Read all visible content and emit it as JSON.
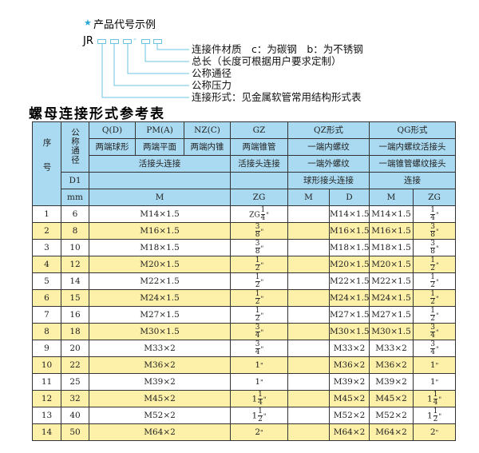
{
  "diagram": {
    "title": "产品代号示例",
    "code": "JR",
    "dash": "-",
    "labels": [
      "连接件材质　c：为碳钢　b：为不锈钢",
      "总长（长度可根据用户要求定制）",
      "公称通径",
      "公称压力",
      "连接形式：见金属软管常用结构形式表"
    ],
    "line_color": "#6cc3e0"
  },
  "table_title": "螺母连接形式参考表",
  "header": {
    "seq": "序号",
    "dn": "公称通径",
    "row1": [
      "Q(D)",
      "PM(A)",
      "NZ(C)",
      "GZ",
      "QZ形式",
      "QG形式"
    ],
    "row2": [
      "两端球形",
      "两端平面",
      "两端内锥",
      "两端锥管",
      "一端内螺纹",
      "一端内螺纹活接头"
    ],
    "row3": [
      "活接头连接",
      "活接头连接",
      "一端外螺纹",
      "一端锥管螺纹接头"
    ],
    "row4": [
      "D1",
      "",
      "",
      "球形接头连接",
      "连接"
    ],
    "row5": [
      "mm",
      "M",
      "ZG",
      "M",
      "D",
      "M",
      "ZG"
    ]
  },
  "rows": [
    {
      "seq": "1",
      "d1": "6",
      "m": "M14×1.5",
      "zg": {
        "pre": "ZG",
        "w": "",
        "n": "1",
        "d": "4"
      },
      "qzm": "",
      "qzd": "M14×1.5",
      "qgm": "M14×1.5",
      "qgzg": {
        "w": "",
        "n": "1",
        "d": "4"
      }
    },
    {
      "seq": "2",
      "d1": "8",
      "m": "M16×1.5",
      "zg": {
        "w": "",
        "n": "3",
        "d": "8"
      },
      "qzm": "",
      "qzd": "M16×1.5",
      "qgm": "M16×1.5",
      "qgzg": {
        "w": "",
        "n": "3",
        "d": "8"
      }
    },
    {
      "seq": "3",
      "d1": "10",
      "m": "M18×1.5",
      "zg": {
        "w": "",
        "n": "3",
        "d": "8"
      },
      "qzm": "",
      "qzd": "M18×1.5",
      "qgm": "M18×1.5",
      "qgzg": {
        "w": "",
        "n": "3",
        "d": "8"
      }
    },
    {
      "seq": "4",
      "d1": "12",
      "m": "M20×1.5",
      "zg": {
        "w": "",
        "n": "1",
        "d": "2"
      },
      "qzm": "",
      "qzd": "M20×1.5",
      "qgm": "M20×1.5",
      "qgzg": {
        "w": "",
        "n": "1",
        "d": "2"
      }
    },
    {
      "seq": "5",
      "d1": "14",
      "m": "M22×1.5",
      "zg": {
        "w": "",
        "n": "1",
        "d": "2"
      },
      "qzm": "",
      "qzd": "M22×1.5",
      "qgm": "M22×1.5",
      "qgzg": {
        "w": "",
        "n": "1",
        "d": "2"
      }
    },
    {
      "seq": "6",
      "d1": "15",
      "m": "M24×1.5",
      "zg": {
        "w": "",
        "n": "1",
        "d": "2"
      },
      "qzm": "",
      "qzd": "M24×1.5",
      "qgm": "M24×1.5",
      "qgzg": {
        "w": "",
        "n": "1",
        "d": "2"
      }
    },
    {
      "seq": "7",
      "d1": "16",
      "m": "M27×1.5",
      "zg": {
        "w": "",
        "n": "1",
        "d": "2"
      },
      "qzm": "",
      "qzd": "M27×1.5",
      "qgm": "M27×1.5",
      "qgzg": {
        "w": "",
        "n": "1",
        "d": "2"
      }
    },
    {
      "seq": "8",
      "d1": "18",
      "m": "M30×1.5",
      "zg": {
        "w": "",
        "n": "3",
        "d": "4"
      },
      "qzm": "",
      "qzd": "M30×1.5",
      "qgm": "M30×1.5",
      "qgzg": {
        "w": "",
        "n": "3",
        "d": "4"
      }
    },
    {
      "seq": "9",
      "d1": "20",
      "m": "M33×2",
      "zg": {
        "w": "",
        "n": "3",
        "d": "4"
      },
      "qzm": "",
      "qzd": "M33×2",
      "qgm": "M33×2",
      "qgzg": {
        "w": "",
        "n": "3",
        "d": "4"
      }
    },
    {
      "seq": "10",
      "d1": "22",
      "m": "M36×2",
      "zg": {
        "w": "1"
      },
      "qzm": "",
      "qzd": "M36×2",
      "qgm": "M36×2",
      "qgzg": {
        "w": "1"
      }
    },
    {
      "seq": "11",
      "d1": "25",
      "m": "M39×2",
      "zg": {
        "w": "1"
      },
      "qzm": "",
      "qzd": "M39×2",
      "qgm": "M39×2",
      "qgzg": {
        "w": "1"
      }
    },
    {
      "seq": "12",
      "d1": "32",
      "m": "M45×2",
      "zg": {
        "w": "1",
        "n": "1",
        "d": "4"
      },
      "qzm": "",
      "qzd": "M45×2",
      "qgm": "M45×2",
      "qgzg": {
        "w": "1",
        "n": "1",
        "d": "4"
      }
    },
    {
      "seq": "13",
      "d1": "40",
      "m": "M52×2",
      "zg": {
        "w": "1",
        "n": "1",
        "d": "2"
      },
      "qzm": "",
      "qzd": "M52×2",
      "qgm": "M52×2",
      "qgzg": {
        "w": "1",
        "n": "1",
        "d": "2"
      }
    },
    {
      "seq": "14",
      "d1": "50",
      "m": "M64×2",
      "zg": {
        "w": "2"
      },
      "qzm": "",
      "qzd": "M64×2",
      "qgm": "M64×2",
      "qgzg": {
        "w": "2"
      }
    }
  ],
  "colors": {
    "header_bg": "#a9daf1",
    "row_alt_bg": "#fdf0a8",
    "star": "#2aa7d8"
  }
}
